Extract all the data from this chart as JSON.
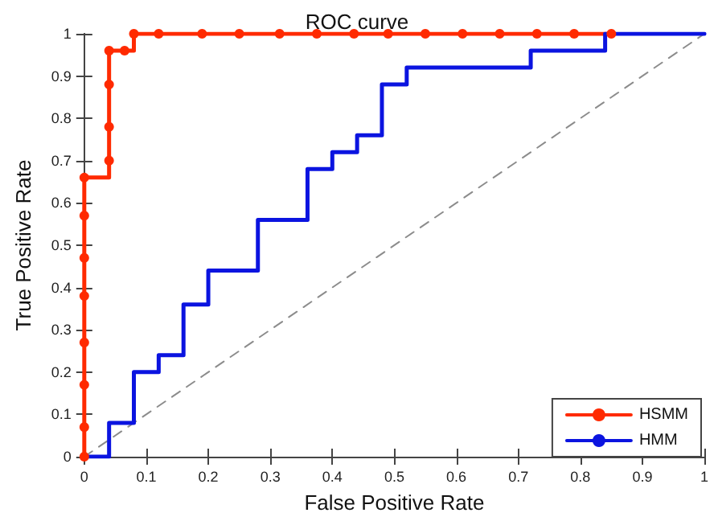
{
  "chart_data": {
    "type": "line",
    "title": "ROC curve",
    "xlabel": "False Positive Rate",
    "ylabel": "True Positive Rate",
    "xlim": [
      0,
      1
    ],
    "ylim": [
      0,
      1
    ],
    "xticks": [
      0,
      0.1,
      0.2,
      0.3,
      0.4,
      0.5,
      0.6,
      0.7,
      0.8,
      0.9,
      1
    ],
    "yticks": [
      0,
      0.1,
      0.2,
      0.3,
      0.4,
      0.5,
      0.6,
      0.7,
      0.8,
      0.9,
      1
    ],
    "grid": false,
    "legend": "bottom right",
    "series": [
      {
        "name": "HSMM",
        "type": "step",
        "color": "#ff2a00",
        "marker": "circle",
        "line_style": "solid",
        "x": [
          0,
          0,
          0,
          0,
          0,
          0,
          0,
          0,
          0.04,
          0.04,
          0.04,
          0.04,
          0.065,
          0.08,
          0.12,
          0.19,
          0.25,
          0.315,
          0.375,
          0.435,
          0.49,
          0.55,
          0.61,
          0.67,
          0.73,
          0.79,
          0.85
        ],
        "values": [
          0,
          0.07,
          0.17,
          0.27,
          0.38,
          0.47,
          0.57,
          0.66,
          0.7,
          0.78,
          0.88,
          0.96,
          0.96,
          1,
          1,
          1,
          1,
          1,
          1,
          1,
          1,
          1,
          1,
          1,
          1,
          1,
          1
        ]
      },
      {
        "name": "HMM",
        "type": "step",
        "color": "#0b14e0",
        "marker": "none",
        "line_style": "solid",
        "x": [
          0,
          0.04,
          0.08,
          0.12,
          0.16,
          0.2,
          0.28,
          0.36,
          0.4,
          0.44,
          0.48,
          0.52,
          0.72,
          0.84,
          1
        ],
        "values": [
          0,
          0.08,
          0.2,
          0.24,
          0.36,
          0.44,
          0.56,
          0.68,
          0.72,
          0.76,
          0.88,
          0.92,
          0.96,
          1,
          1
        ]
      },
      {
        "color": "#8c8c8c",
        "marker": "none",
        "line_style": "dashed",
        "x": [
          0,
          1
        ],
        "values": [
          0,
          1
        ]
      }
    ]
  }
}
